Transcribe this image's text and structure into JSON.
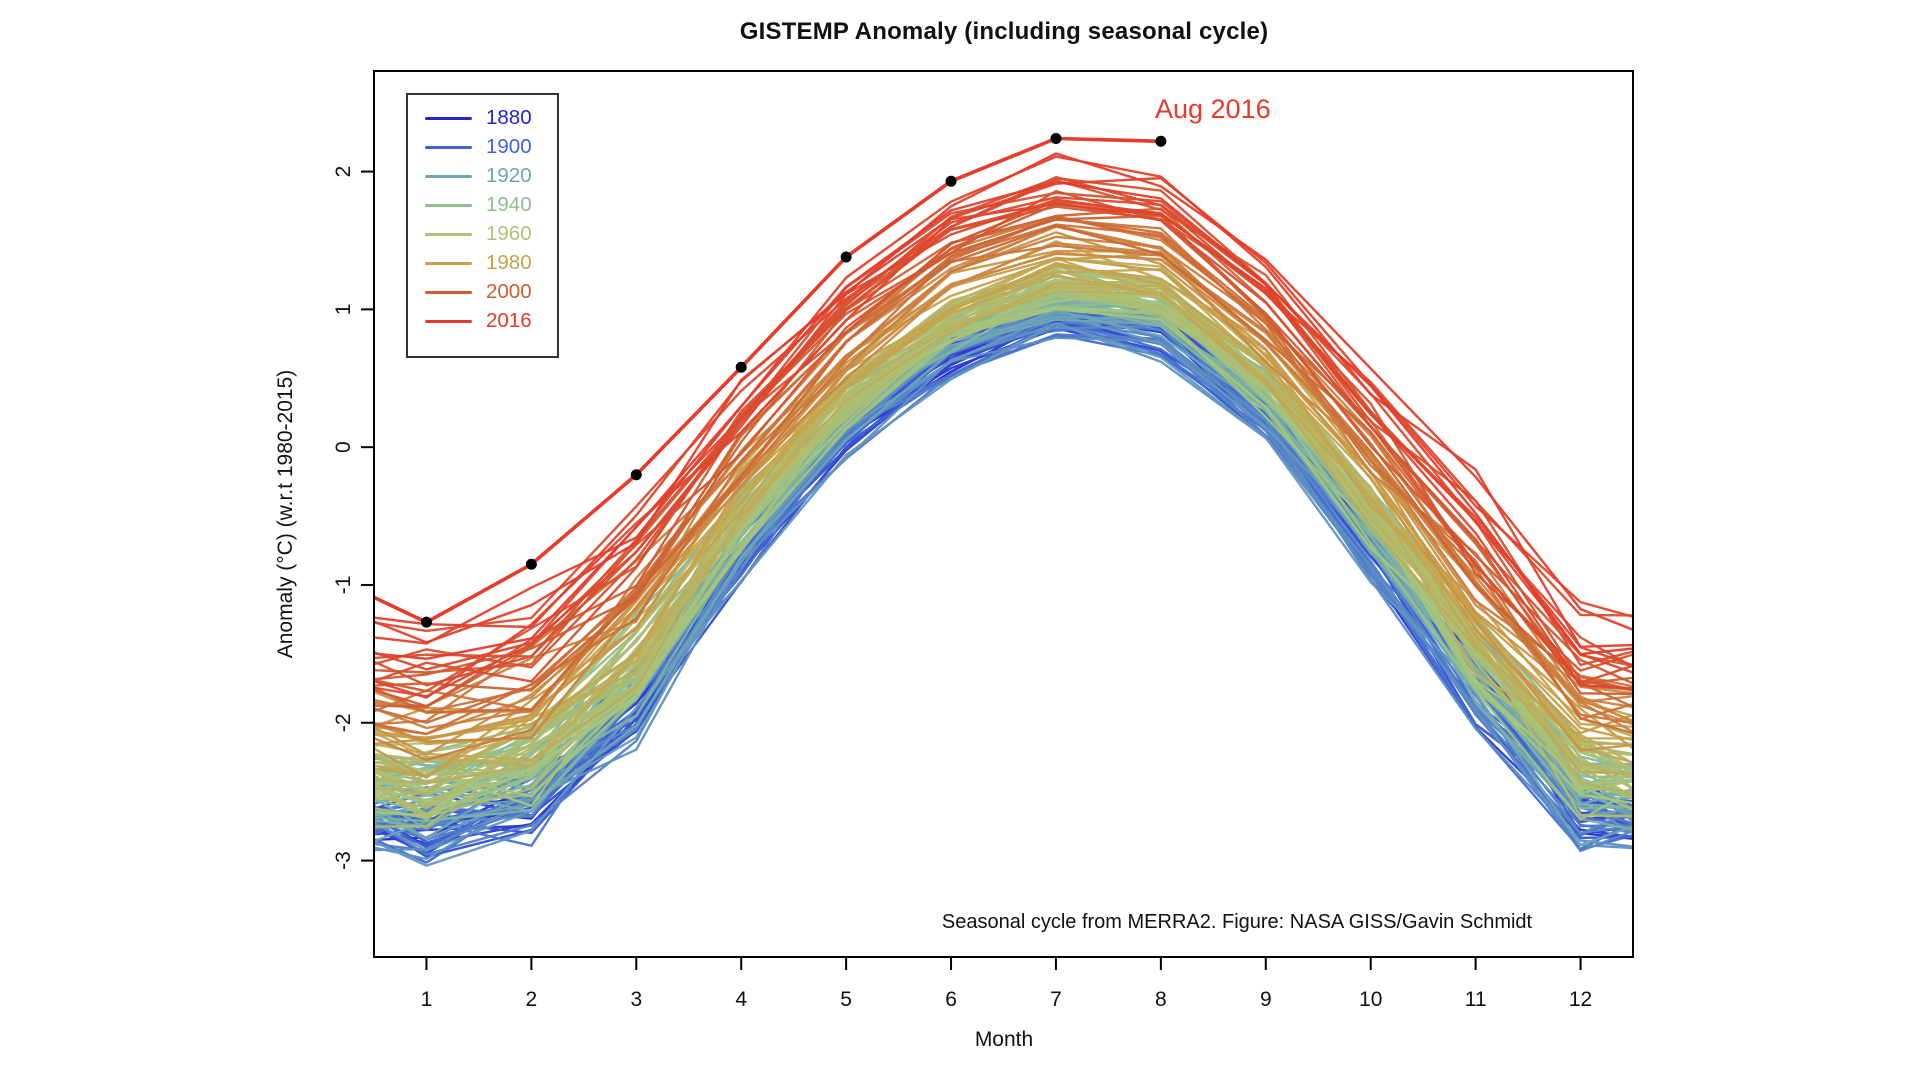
{
  "page": {
    "background": "#ffffff"
  },
  "chart_data": {
    "type": "line",
    "title": "GISTEMP Anomaly (including seasonal cycle)",
    "xlabel": "Month",
    "ylabel": "Anomaly (°C) (w.r.t 1980-2015)",
    "footnote": "Seasonal cycle from MERRA2. Figure: NASA GISS/Gavin Schmidt",
    "annotation": {
      "text": "Aug 2016",
      "color": "#e8392a",
      "x_month": 8,
      "y_value": 2.55
    },
    "x_ticks": [
      1,
      2,
      3,
      4,
      5,
      6,
      7,
      8,
      9,
      10,
      11,
      12
    ],
    "y_ticks": [
      2,
      1,
      0,
      -1,
      -2,
      -3
    ],
    "xlim": [
      0.5,
      12.5
    ],
    "ylim": [
      -3.7,
      2.73
    ],
    "grid": "off",
    "axis_color": "#000000",
    "legend": {
      "position": "top-left",
      "items": [
        {
          "label": "1880",
          "color": "#2226d0"
        },
        {
          "label": "1900",
          "color": "#3e63d8"
        },
        {
          "label": "1920",
          "color": "#6ba3b8"
        },
        {
          "label": "1940",
          "color": "#8fbe8f"
        },
        {
          "label": "1960",
          "color": "#a9c578"
        },
        {
          "label": "1980",
          "color": "#c7a24b"
        },
        {
          "label": "2000",
          "color": "#cf5c31"
        },
        {
          "label": "2016",
          "color": "#e8392a"
        }
      ]
    },
    "series_2016": {
      "name": "2016",
      "color": "#e8392a",
      "marker": "filled-circle",
      "marker_color": "#000000",
      "months": [
        1,
        2,
        3,
        4,
        5,
        6,
        7,
        8
      ],
      "values": [
        -1.27,
        -0.85,
        -0.2,
        0.58,
        1.38,
        1.93,
        2.24,
        2.22
      ],
      "lead_in": {
        "month": 0.5,
        "value": -1.09
      }
    },
    "background_ensemble": {
      "description": "One line per year 1880-2015 (anomaly + MERRA2 seasonal cycle), colored from blue (oldest) to red (newest)",
      "year_start": 1880,
      "year_end": 2015,
      "months": [
        1,
        2,
        3,
        4,
        5,
        6,
        7,
        8,
        9,
        10,
        11,
        12
      ],
      "seasonal_cycle": [
        -2.15,
        -1.95,
        -1.25,
        -0.25,
        0.6,
        1.15,
        1.42,
        1.32,
        0.7,
        -0.2,
        -1.15,
        -2.05
      ],
      "decade_offset_anchors": [
        [
          1880,
          -0.45
        ],
        [
          1890,
          -0.47
        ],
        [
          1900,
          -0.5
        ],
        [
          1910,
          -0.55
        ],
        [
          1920,
          -0.45
        ],
        [
          1930,
          -0.32
        ],
        [
          1940,
          -0.2
        ],
        [
          1950,
          -0.3
        ],
        [
          1960,
          -0.25
        ],
        [
          1970,
          -0.22
        ],
        [
          1980,
          -0.05
        ],
        [
          1990,
          0.12
        ],
        [
          2000,
          0.32
        ],
        [
          2010,
          0.48
        ],
        [
          2015,
          0.6
        ]
      ],
      "winter_offset_scale": 1.25,
      "winter_noise": 0.24,
      "summer_noise": 0.1,
      "color_anchors": [
        [
          1880,
          "#2226d0"
        ],
        [
          1900,
          "#3e63d8"
        ],
        [
          1920,
          "#6ba3b8"
        ],
        [
          1940,
          "#8fbe8f"
        ],
        [
          1960,
          "#a9c578"
        ],
        [
          1980,
          "#c7a24b"
        ],
        [
          2000,
          "#cf5c31"
        ],
        [
          2016,
          "#e8392a"
        ]
      ]
    }
  }
}
